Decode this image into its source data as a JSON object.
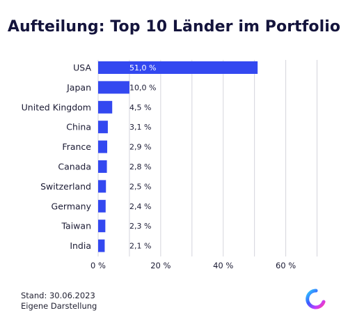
{
  "title": "Aufteilung: Top 10 Länder im Portfolio",
  "footer": {
    "line1": "Stand: 30.06.2023",
    "line2": "Eigene Darstellung"
  },
  "colors": {
    "bar": "#3348f0",
    "grid": "#d4d4dc",
    "text": "#1a1a33",
    "logo_gradient": [
      "#2fd0ff",
      "#3b5bff",
      "#c23bff",
      "#ff3fa4"
    ]
  },
  "logo": {
    "icon": "brand-ring-logo-icon"
  },
  "chart_data": {
    "type": "bar",
    "orientation": "horizontal",
    "title": "Aufteilung: Top 10 Länder im Portfolio",
    "categories": [
      "USA",
      "Japan",
      "United Kingdom",
      "China",
      "France",
      "Canada",
      "Switzerland",
      "Germany",
      "Taiwan",
      "India"
    ],
    "values": [
      51.0,
      10.0,
      4.5,
      3.1,
      2.9,
      2.8,
      2.5,
      2.4,
      2.3,
      2.1
    ],
    "value_labels": [
      "51,0 %",
      "10,0 %",
      "4,5 %",
      "3,1 %",
      "2,9 %",
      "2,8 %",
      "2,5 %",
      "2,4 %",
      "2,3 %",
      "2,1 %"
    ],
    "xticks": [
      0,
      20,
      40,
      60
    ],
    "xtick_labels": [
      "0 %",
      "20 %",
      "40 %",
      "60 %"
    ],
    "xlim": [
      0,
      71
    ],
    "grid": true,
    "legend": "none",
    "xlabel": "",
    "ylabel": ""
  }
}
